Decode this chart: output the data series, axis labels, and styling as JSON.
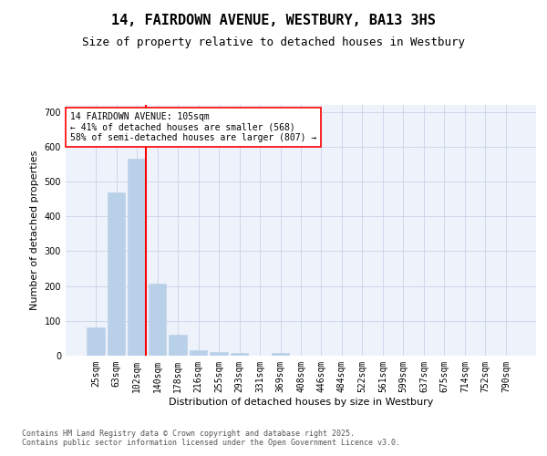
{
  "title": "14, FAIRDOWN AVENUE, WESTBURY, BA13 3HS",
  "subtitle": "Size of property relative to detached houses in Westbury",
  "xlabel": "Distribution of detached houses by size in Westbury",
  "ylabel": "Number of detached properties",
  "categories": [
    "25sqm",
    "63sqm",
    "102sqm",
    "140sqm",
    "178sqm",
    "216sqm",
    "255sqm",
    "293sqm",
    "331sqm",
    "369sqm",
    "408sqm",
    "446sqm",
    "484sqm",
    "522sqm",
    "561sqm",
    "599sqm",
    "637sqm",
    "675sqm",
    "714sqm",
    "752sqm",
    "790sqm"
  ],
  "values": [
    80,
    468,
    565,
    208,
    60,
    16,
    10,
    7,
    0,
    7,
    0,
    0,
    0,
    0,
    0,
    0,
    0,
    0,
    0,
    0,
    0
  ],
  "bar_color": "#b8d0e8",
  "bar_edgecolor": "#b8d0e8",
  "vline_color": "red",
  "vline_x_index": 2,
  "annotation_line1": "14 FAIRDOWN AVENUE: 105sqm",
  "annotation_line2": "← 41% of detached houses are smaller (568)",
  "annotation_line3": "58% of semi-detached houses are larger (807) →",
  "annotation_box_facecolor": "white",
  "annotation_box_edgecolor": "red",
  "background_color": "#eef2fb",
  "ylim": [
    0,
    720
  ],
  "yticks": [
    0,
    100,
    200,
    300,
    400,
    500,
    600,
    700
  ],
  "title_fontsize": 11,
  "subtitle_fontsize": 9,
  "xlabel_fontsize": 8,
  "ylabel_fontsize": 8,
  "tick_fontsize": 7,
  "annotation_fontsize": 7,
  "footer_fontsize": 6,
  "footer": "Contains HM Land Registry data © Crown copyright and database right 2025.\nContains public sector information licensed under the Open Government Licence v3.0."
}
